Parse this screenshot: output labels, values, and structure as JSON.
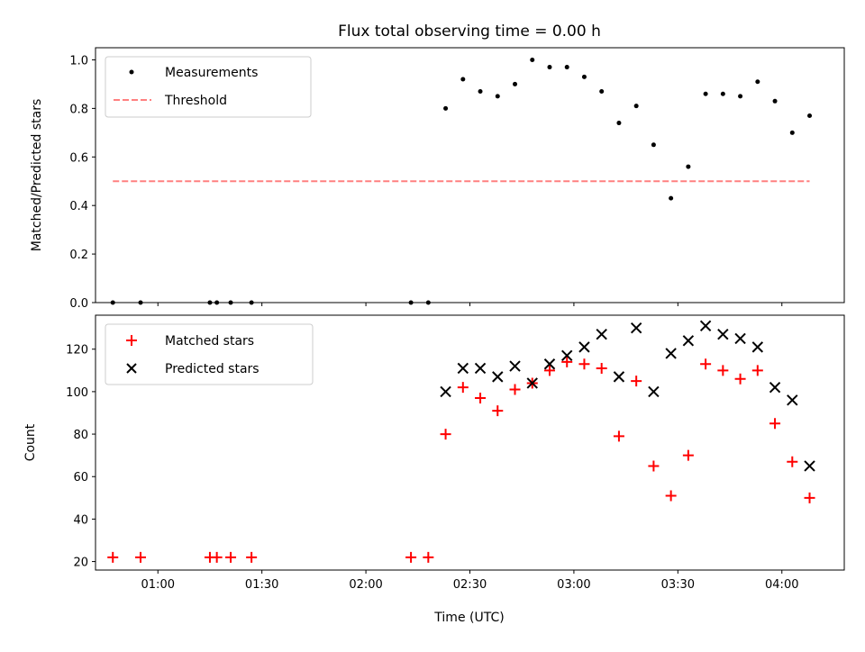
{
  "chart_data": {
    "title": "Flux total observing time = 0.00 h",
    "xlabel": "Time (UTC)",
    "x_ticks": [
      "01:00",
      "01:30",
      "02:00",
      "02:30",
      "03:00",
      "03:30",
      "04:00"
    ],
    "x_tick_times": [
      "01:00",
      "01:30",
      "02:00",
      "02:30",
      "03:00",
      "03:30",
      "04:00"
    ],
    "xlim": [
      "00:42",
      "04:18"
    ],
    "x_times": [
      "00:47",
      "00:55",
      "01:15",
      "01:17",
      "01:21",
      "01:27",
      "02:13",
      "02:18",
      "02:23",
      "02:28",
      "02:33",
      "02:38",
      "02:43",
      "02:48",
      "02:53",
      "02:58",
      "03:03",
      "03:08",
      "03:13",
      "03:18",
      "03:23",
      "03:28",
      "03:33",
      "03:38",
      "03:43",
      "03:48",
      "03:53",
      "03:58",
      "04:03",
      "04:08"
    ],
    "panels": [
      {
        "type": "scatter",
        "ylabel": "Matched/Predicted stars",
        "ylim": [
          0,
          1.05
        ],
        "yticks": [
          "0.0",
          "0.2",
          "0.4",
          "0.6",
          "0.8",
          "1.0"
        ],
        "ytick_values": [
          0,
          0.2,
          0.4,
          0.6,
          0.8,
          1.0
        ],
        "legend_position": "top-left",
        "series": [
          {
            "name": "Measurements",
            "marker": "dot",
            "color": "#000000",
            "values": [
              0,
              0,
              0,
              0,
              0,
              0,
              0,
              0,
              0.8,
              0.92,
              0.87,
              0.85,
              0.9,
              1.0,
              0.97,
              0.97,
              0.93,
              0.87,
              0.74,
              0.81,
              0.65,
              0.43,
              0.56,
              0.86,
              0.86,
              0.85,
              0.91,
              0.83,
              0.7,
              0.77
            ]
          },
          {
            "name": "Threshold",
            "marker": "dashed-line",
            "color": "#ff8080",
            "x_range": [
              "00:47",
              "04:08"
            ],
            "value": 0.5
          }
        ]
      },
      {
        "type": "scatter",
        "ylabel": "Count",
        "ylim": [
          16,
          136
        ],
        "yticks": [
          "20",
          "40",
          "60",
          "80",
          "100",
          "120"
        ],
        "ytick_values": [
          20,
          40,
          60,
          80,
          100,
          120
        ],
        "legend_position": "top-left",
        "series": [
          {
            "name": "Matched stars",
            "marker": "plus",
            "color": "#ff0000",
            "values": [
              22,
              22,
              22,
              22,
              22,
              22,
              22,
              22,
              80,
              102,
              97,
              91,
              101,
              104,
              110,
              114,
              113,
              111,
              79,
              105,
              65,
              51,
              70,
              113,
              110,
              106,
              110,
              85,
              67,
              50
            ]
          },
          {
            "name": "Predicted stars",
            "marker": "x",
            "color": "#000000",
            "values": [
              null,
              null,
              null,
              null,
              null,
              null,
              null,
              null,
              100,
              111,
              111,
              107,
              112,
              104,
              113,
              117,
              121,
              127,
              107,
              130,
              100,
              118,
              124,
              131,
              127,
              125,
              121,
              102,
              96,
              65
            ]
          }
        ]
      }
    ]
  }
}
